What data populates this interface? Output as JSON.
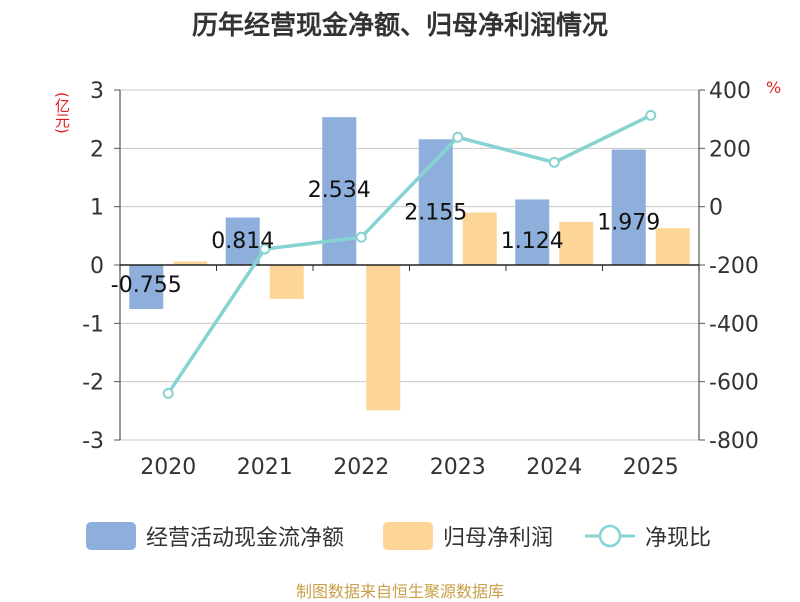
{
  "title": "历年经营现金净额、归母净利润情况",
  "left_unit": "(亿元)",
  "right_unit": "%",
  "source": "制图数据来自恒生聚源数据库",
  "chart_data": {
    "type": "bar",
    "categories": [
      "2020",
      "2021",
      "2022",
      "2023",
      "2024",
      "2025"
    ],
    "left_ylim": [
      -3,
      3
    ],
    "left_ticks": [
      "3",
      "2",
      "1",
      "0",
      "-1",
      "-2",
      "-3"
    ],
    "right_ylim": [
      -800,
      400
    ],
    "right_ticks": [
      "400",
      "200",
      "0",
      "-200",
      "-400",
      "-600",
      "-800"
    ],
    "grid": true,
    "legend_position": "bottom",
    "series": [
      {
        "name": "经营活动现金流净额",
        "type": "bar",
        "axis": "left",
        "color": "#8eaedb",
        "values": [
          -0.755,
          0.814,
          2.534,
          2.155,
          1.124,
          1.979
        ],
        "labels": [
          "-0.755",
          "0.814",
          "2.534",
          "2.155",
          "1.124",
          "1.979"
        ]
      },
      {
        "name": "归母净利润",
        "type": "bar",
        "axis": "left",
        "color": "#fdd596",
        "values": [
          0.06,
          -0.58,
          -2.49,
          0.9,
          0.74,
          0.63
        ]
      },
      {
        "name": "净现比",
        "type": "line",
        "axis": "right",
        "color": "#87d3d3",
        "values": [
          -640,
          -145,
          -105,
          238,
          152,
          313
        ]
      }
    ]
  }
}
